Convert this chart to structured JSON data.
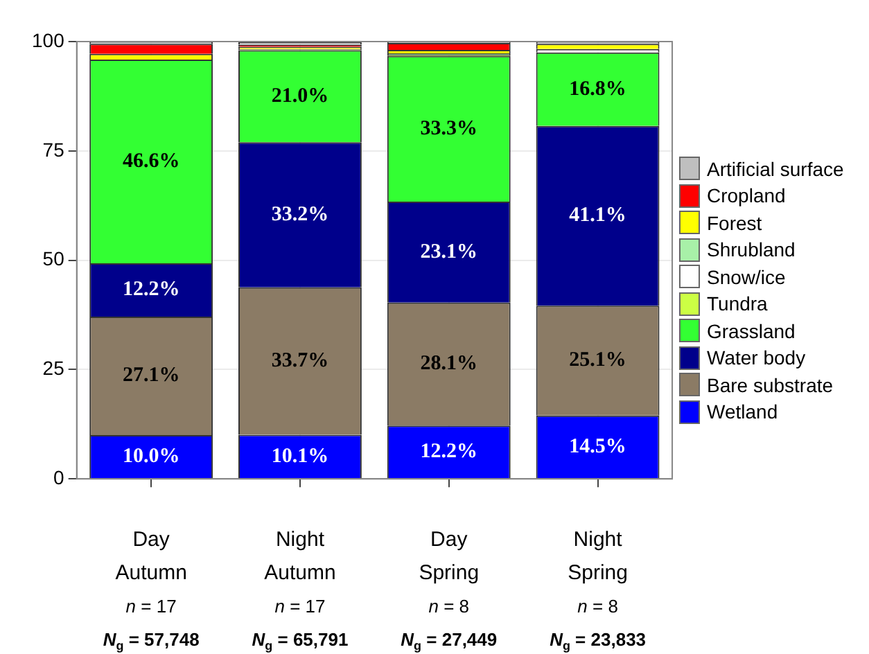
{
  "chart_data": {
    "type": "bar",
    "stacked": true,
    "categories": [
      "Day\nAutumn\nn = 17\nN$_{g}$ = 57,748",
      "Night\nAutumn\nn = 17\nN$_{g}$ = 65,791",
      "Day\nSpring\nn = 8\nN$_{g}$ = 27,449",
      "Night\nSpring\nn = 8\nN$_{g}$ = 23,833"
    ],
    "ylim": [
      0,
      100
    ],
    "yticks": [
      0,
      25,
      50,
      75,
      100
    ],
    "grid": true,
    "legend": "right",
    "series": [
      {
        "name": "Wetland",
        "color": "#0000ff",
        "values": [
          10.0,
          10.1,
          12.2,
          14.5
        ],
        "value_labels": [
          "10.0%",
          "10.1%",
          "12.2%",
          "14.5%"
        ]
      },
      {
        "name": "Bare substrate",
        "color": "#8b7b65",
        "values": [
          27.1,
          33.7,
          28.1,
          25.1
        ],
        "value_labels": [
          "27.1%",
          "33.7%",
          "28.1%",
          "25.1%"
        ]
      },
      {
        "name": "Water body",
        "color": "#00008b",
        "values": [
          12.2,
          33.2,
          23.1,
          41.1
        ],
        "value_labels": [
          "12.2%",
          "33.2%",
          "23.1%",
          "41.1%"
        ]
      },
      {
        "name": "Grassland",
        "color": "#33ff33",
        "values": [
          46.6,
          21.0,
          33.3,
          16.8
        ],
        "value_labels": [
          "46.6%",
          "21.0%",
          "33.3%",
          "16.8%"
        ]
      },
      {
        "name": "Tundra",
        "color": "#ccff44",
        "values": [
          0,
          0.3,
          0.3,
          0
        ]
      },
      {
        "name": "Snow/ice",
        "color": "#ffffff",
        "values": [
          0,
          0,
          0,
          0.8
        ]
      },
      {
        "name": "Shrubland",
        "color": "#a8f0a8",
        "values": [
          0,
          0,
          0.3,
          0
        ]
      },
      {
        "name": "Forest",
        "color": "#ffff00",
        "values": [
          1.3,
          0.5,
          0.8,
          1.2
        ]
      },
      {
        "name": "Cropland",
        "color": "#ff0000",
        "values": [
          2.3,
          0.5,
          1.6,
          0
        ]
      },
      {
        "name": "Artificial surface",
        "color": "#bfbfbf",
        "values": [
          0.5,
          0.7,
          0.3,
          0.5
        ]
      }
    ]
  }
}
